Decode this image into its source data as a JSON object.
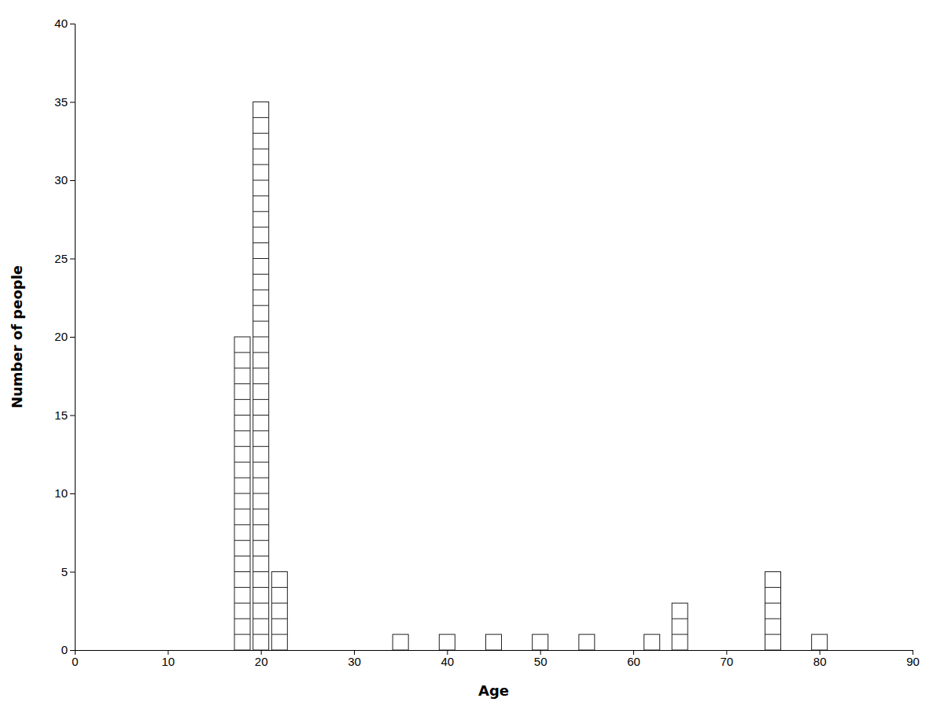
{
  "chart_data": {
    "type": "bar",
    "x": [
      18,
      20,
      22,
      35,
      40,
      45,
      50,
      55,
      62,
      65,
      75,
      80
    ],
    "values": [
      20,
      35,
      5,
      1,
      1,
      1,
      1,
      1,
      1,
      3,
      5,
      1
    ],
    "color": "#ffffff",
    "xlim": [
      0,
      90
    ],
    "ylim": [
      0,
      40
    ],
    "xticks": [
      0,
      10,
      20,
      30,
      40,
      50,
      60,
      70,
      80,
      90
    ],
    "yticks": [
      0,
      5,
      10,
      15,
      20,
      25,
      30,
      35,
      40
    ],
    "xlabel": "Age",
    "ylabel": "Number of people",
    "grid": false
  }
}
